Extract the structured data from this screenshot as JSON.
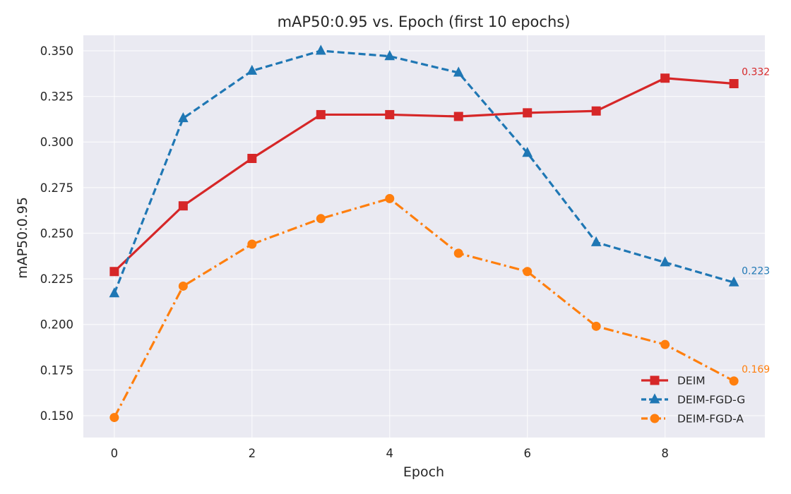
{
  "chart_data": {
    "type": "line",
    "title": "mAP50:0.95 vs. Epoch (first 10 epochs)",
    "xlabel": "Epoch",
    "ylabel": "mAP50:0.95",
    "x": [
      0,
      1,
      2,
      3,
      4,
      5,
      6,
      7,
      8,
      9
    ],
    "xlim": [
      -0.45,
      9.45
    ],
    "ylim": [
      0.138,
      0.3585
    ],
    "xticks": [
      0,
      2,
      4,
      6,
      8
    ],
    "yticks": [
      0.15,
      0.175,
      0.2,
      0.225,
      0.25,
      0.275,
      0.3,
      0.325,
      0.35
    ],
    "ytick_labels": [
      "0.150",
      "0.175",
      "0.200",
      "0.225",
      "0.250",
      "0.275",
      "0.300",
      "0.325",
      "0.350"
    ],
    "grid": true,
    "legend_position": "lower-right",
    "series": [
      {
        "name": "DEIM",
        "color": "#d62728",
        "line_style": "solid",
        "marker": "square",
        "values": [
          0.229,
          0.265,
          0.291,
          0.315,
          0.315,
          0.314,
          0.316,
          0.317,
          0.335,
          0.332
        ],
        "end_label": "0.332"
      },
      {
        "name": "DEIM-FGD-G",
        "color": "#1f77b4",
        "line_style": "dashed",
        "marker": "triangle",
        "values": [
          0.217,
          0.313,
          0.339,
          0.35,
          0.347,
          0.338,
          0.294,
          0.245,
          0.234,
          0.223
        ],
        "end_label": "0.223"
      },
      {
        "name": "DEIM-FGD-A",
        "color": "#ff7f0e",
        "line_style": "dashdot",
        "marker": "circle",
        "values": [
          0.149,
          0.221,
          0.244,
          0.258,
          0.269,
          0.239,
          0.229,
          0.199,
          0.189,
          0.169
        ],
        "end_label": "0.169"
      }
    ]
  }
}
